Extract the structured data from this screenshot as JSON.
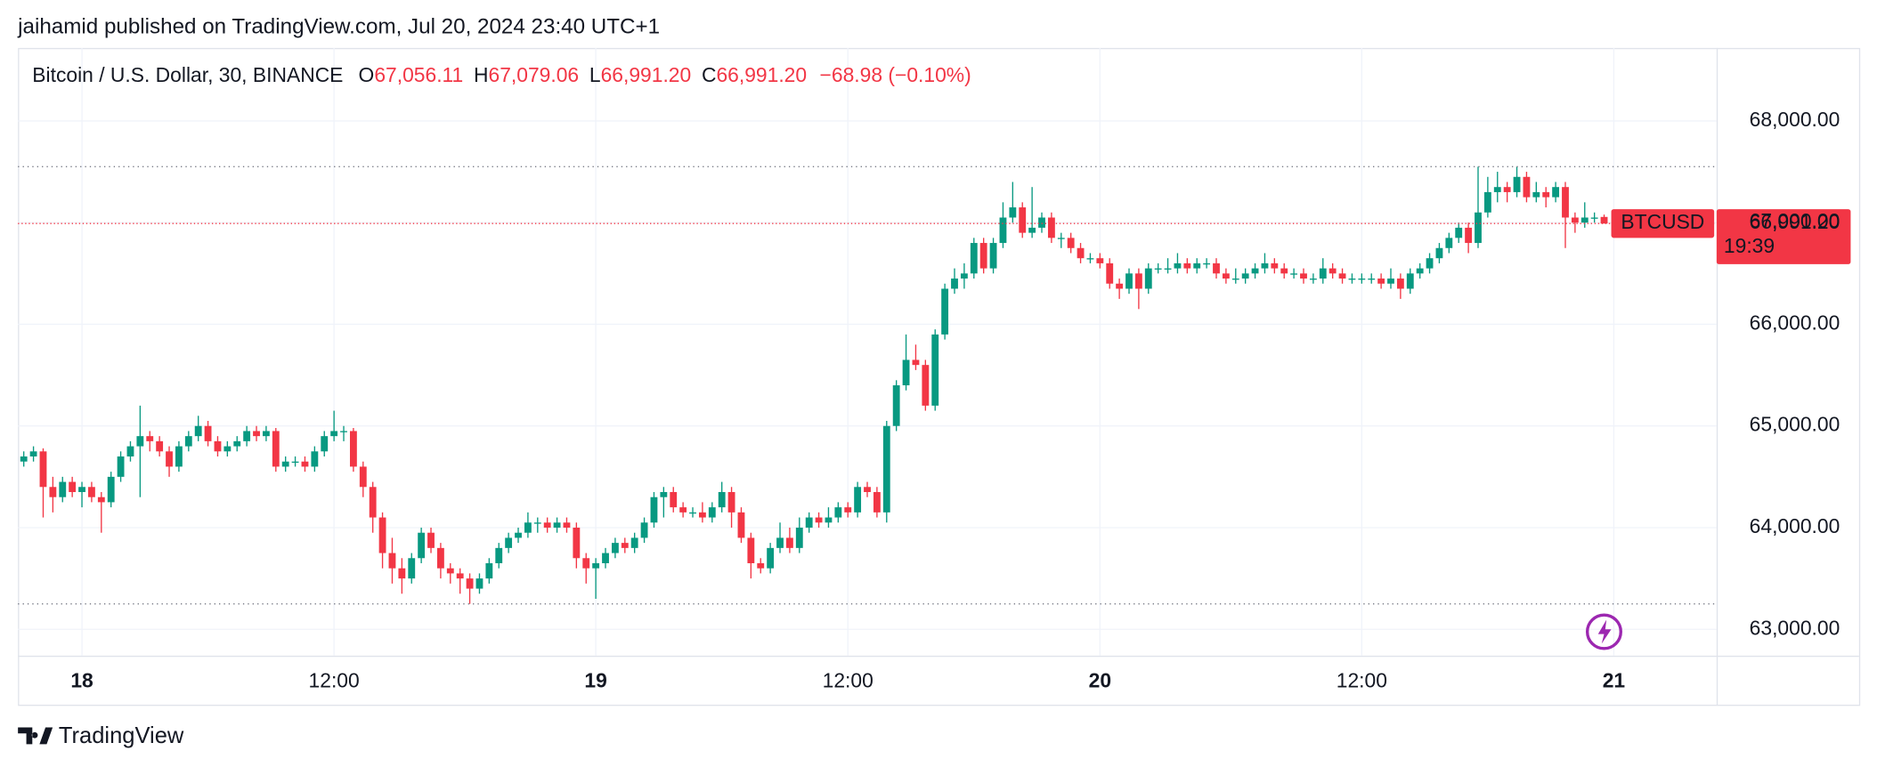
{
  "chart_data": {
    "type": "candlestick",
    "publisher_line": "jaihamid published on TradingView.com, Jul 20, 2024 23:40 UTC+1",
    "symbol_line": "Bitcoin / U.S. Dollar, 30, BINANCE",
    "ohlc_header": {
      "open_prefix": "O",
      "open": "67,056.11",
      "high_prefix": "H",
      "high": "67,079.06",
      "low_prefix": "L",
      "low": "66,991.20",
      "close_prefix": "C",
      "close": "66,991.20",
      "change": "−68.98 (−0.10%)"
    },
    "symbol_tag": "BTCUSD",
    "last_price_label": "66,991.20",
    "countdown": "19:39",
    "brand": "TradingView",
    "up_color": "#089981",
    "down_color": "#f23645",
    "grid": true,
    "xlim": [
      -0.6,
      174.6
    ],
    "xticks": [
      {
        "value": 6,
        "label": "18"
      },
      {
        "value": 32,
        "label": "12:00"
      },
      {
        "value": 59,
        "label": "19"
      },
      {
        "value": 85,
        "label": "12:00"
      },
      {
        "value": 111,
        "label": "20"
      },
      {
        "value": 138,
        "label": "12:00"
      },
      {
        "value": 164,
        "label": "21"
      }
    ],
    "ylim": [
      62741,
      68718
    ],
    "yticks": [
      {
        "value": 63000,
        "label": "63,000.00"
      },
      {
        "value": 64000,
        "label": "64,000.00"
      },
      {
        "value": 65000,
        "label": "65,000.00"
      },
      {
        "value": 66000,
        "label": "66,000.00"
      },
      {
        "value": 67000,
        "label": "67,000.00"
      },
      {
        "value": 68000,
        "label": "68,000.00"
      }
    ],
    "candles": [
      [
        64650,
        64750,
        64600,
        64700
      ],
      [
        64700,
        64800,
        64650,
        64750
      ],
      [
        64750,
        64780,
        64100,
        64400
      ],
      [
        64400,
        64500,
        64150,
        64300
      ],
      [
        64300,
        64500,
        64250,
        64450
      ],
      [
        64450,
        64500,
        64300,
        64350
      ],
      [
        64350,
        64450,
        64200,
        64400
      ],
      [
        64400,
        64450,
        64250,
        64300
      ],
      [
        64300,
        64350,
        63950,
        64250
      ],
      [
        64250,
        64550,
        64200,
        64500
      ],
      [
        64500,
        64750,
        64450,
        64700
      ],
      [
        64700,
        64850,
        64650,
        64800
      ],
      [
        64800,
        65200,
        64300,
        64900
      ],
      [
        64900,
        64950,
        64750,
        64850
      ],
      [
        64850,
        64900,
        64700,
        64750
      ],
      [
        64750,
        64800,
        64500,
        64600
      ],
      [
        64600,
        64850,
        64550,
        64800
      ],
      [
        64800,
        64950,
        64750,
        64900
      ],
      [
        64900,
        65100,
        64850,
        65000
      ],
      [
        65000,
        65050,
        64800,
        64850
      ],
      [
        64850,
        64900,
        64700,
        64750
      ],
      [
        64750,
        64850,
        64700,
        64800
      ],
      [
        64800,
        64900,
        64750,
        64850
      ],
      [
        64850,
        65000,
        64800,
        64950
      ],
      [
        64950,
        65000,
        64850,
        64900
      ],
      [
        64900,
        65000,
        64850,
        64950
      ],
      [
        64950,
        64980,
        64550,
        64600
      ],
      [
        64600,
        64700,
        64550,
        64650
      ],
      [
        64650,
        64700,
        64600,
        64650
      ],
      [
        64650,
        64700,
        64550,
        64600
      ],
      [
        64600,
        64800,
        64550,
        64750
      ],
      [
        64750,
        64950,
        64700,
        64900
      ],
      [
        64900,
        65150,
        64850,
        64950
      ],
      [
        64950,
        65000,
        64850,
        64950
      ],
      [
        64950,
        64980,
        64550,
        64600
      ],
      [
        64600,
        64650,
        64300,
        64400
      ],
      [
        64400,
        64450,
        63950,
        64100
      ],
      [
        64100,
        64150,
        63600,
        63750
      ],
      [
        63750,
        63900,
        63450,
        63600
      ],
      [
        63600,
        63700,
        63350,
        63500
      ],
      [
        63500,
        63750,
        63450,
        63700
      ],
      [
        63700,
        64000,
        63650,
        63950
      ],
      [
        63950,
        64000,
        63750,
        63800
      ],
      [
        63800,
        63850,
        63500,
        63600
      ],
      [
        63600,
        63650,
        63450,
        63550
      ],
      [
        63550,
        63600,
        63350,
        63500
      ],
      [
        63500,
        63550,
        63250,
        63400
      ],
      [
        63400,
        63550,
        63350,
        63500
      ],
      [
        63500,
        63700,
        63450,
        63650
      ],
      [
        63650,
        63850,
        63600,
        63800
      ],
      [
        63800,
        63950,
        63750,
        63900
      ],
      [
        63900,
        64000,
        63850,
        63950
      ],
      [
        63950,
        64150,
        63900,
        64050
      ],
      [
        64050,
        64100,
        63950,
        64050
      ],
      [
        64050,
        64100,
        63950,
        64000
      ],
      [
        64000,
        64100,
        63950,
        64050
      ],
      [
        64050,
        64100,
        63950,
        64000
      ],
      [
        64000,
        64050,
        63600,
        63700
      ],
      [
        63700,
        63750,
        63450,
        63600
      ],
      [
        63600,
        63700,
        63300,
        63650
      ],
      [
        63650,
        63800,
        63600,
        63750
      ],
      [
        63750,
        63900,
        63700,
        63850
      ],
      [
        63850,
        63900,
        63750,
        63800
      ],
      [
        63800,
        63950,
        63750,
        63900
      ],
      [
        63900,
        64100,
        63850,
        64050
      ],
      [
        64050,
        64350,
        64000,
        64300
      ],
      [
        64300,
        64400,
        64100,
        64350
      ],
      [
        64350,
        64400,
        64150,
        64200
      ],
      [
        64200,
        64250,
        64100,
        64150
      ],
      [
        64150,
        64200,
        64100,
        64150
      ],
      [
        64150,
        64250,
        64050,
        64100
      ],
      [
        64100,
        64250,
        64050,
        64200
      ],
      [
        64200,
        64450,
        64150,
        64350
      ],
      [
        64350,
        64400,
        64000,
        64150
      ],
      [
        64150,
        64200,
        63850,
        63900
      ],
      [
        63900,
        63950,
        63500,
        63650
      ],
      [
        63650,
        63700,
        63550,
        63600
      ],
      [
        63600,
        63850,
        63550,
        63800
      ],
      [
        63800,
        64050,
        63750,
        63900
      ],
      [
        63900,
        64000,
        63750,
        63800
      ],
      [
        63800,
        64100,
        63750,
        64000
      ],
      [
        64000,
        64150,
        63950,
        64100
      ],
      [
        64100,
        64150,
        64000,
        64050
      ],
      [
        64050,
        64200,
        64000,
        64100
      ],
      [
        64100,
        64250,
        64050,
        64200
      ],
      [
        64200,
        64250,
        64100,
        64150
      ],
      [
        64150,
        64450,
        64100,
        64400
      ],
      [
        64400,
        64450,
        64300,
        64350
      ],
      [
        64350,
        64400,
        64100,
        64150
      ],
      [
        64150,
        65050,
        64050,
        65000
      ],
      [
        65000,
        65450,
        64950,
        65400
      ],
      [
        65400,
        65900,
        65350,
        65650
      ],
      [
        65650,
        65800,
        65550,
        65600
      ],
      [
        65600,
        65650,
        65150,
        65200
      ],
      [
        65200,
        65950,
        65150,
        65900
      ],
      [
        65900,
        66400,
        65850,
        66350
      ],
      [
        66350,
        66550,
        66300,
        66450
      ],
      [
        66450,
        66600,
        66350,
        66500
      ],
      [
        66500,
        66850,
        66450,
        66800
      ],
      [
        66800,
        66850,
        66500,
        66550
      ],
      [
        66550,
        66850,
        66500,
        66800
      ],
      [
        66800,
        67200,
        66750,
        67050
      ],
      [
        67050,
        67400,
        67000,
        67150
      ],
      [
        67150,
        67200,
        66850,
        66900
      ],
      [
        66900,
        67350,
        66850,
        66950
      ],
      [
        66950,
        67100,
        66900,
        67050
      ],
      [
        67050,
        67100,
        66800,
        66850
      ],
      [
        66850,
        66900,
        66750,
        66850
      ],
      [
        66850,
        66900,
        66700,
        66750
      ],
      [
        66750,
        66800,
        66600,
        66650
      ],
      [
        66650,
        66700,
        66600,
        66650
      ],
      [
        66650,
        66700,
        66550,
        66600
      ],
      [
        66600,
        66650,
        66350,
        66400
      ],
      [
        66400,
        66450,
        66250,
        66350
      ],
      [
        66350,
        66550,
        66300,
        66500
      ],
      [
        66500,
        66550,
        66150,
        66350
      ],
      [
        66350,
        66600,
        66300,
        66550
      ],
      [
        66550,
        66600,
        66500,
        66550
      ],
      [
        66550,
        66650,
        66500,
        66550
      ],
      [
        66550,
        66700,
        66500,
        66600
      ],
      [
        66600,
        66650,
        66500,
        66550
      ],
      [
        66550,
        66650,
        66500,
        66600
      ],
      [
        66600,
        66650,
        66550,
        66600
      ],
      [
        66600,
        66650,
        66450,
        66500
      ],
      [
        66500,
        66550,
        66400,
        66450
      ],
      [
        66450,
        66550,
        66400,
        66450
      ],
      [
        66450,
        66550,
        66400,
        66500
      ],
      [
        66500,
        66600,
        66450,
        66550
      ],
      [
        66550,
        66700,
        66500,
        66600
      ],
      [
        66600,
        66650,
        66500,
        66550
      ],
      [
        66550,
        66600,
        66450,
        66500
      ],
      [
        66500,
        66550,
        66450,
        66500
      ],
      [
        66500,
        66550,
        66400,
        66450
      ],
      [
        66450,
        66500,
        66400,
        66450
      ],
      [
        66450,
        66650,
        66400,
        66550
      ],
      [
        66550,
        66600,
        66450,
        66500
      ],
      [
        66500,
        66550,
        66400,
        66450
      ],
      [
        66450,
        66500,
        66400,
        66450
      ],
      [
        66450,
        66500,
        66400,
        66450
      ],
      [
        66450,
        66500,
        66400,
        66450
      ],
      [
        66450,
        66500,
        66350,
        66400
      ],
      [
        66400,
        66550,
        66350,
        66450
      ],
      [
        66450,
        66500,
        66250,
        66350
      ],
      [
        66350,
        66550,
        66300,
        66500
      ],
      [
        66500,
        66600,
        66450,
        66550
      ],
      [
        66550,
        66700,
        66500,
        66650
      ],
      [
        66650,
        66800,
        66600,
        66750
      ],
      [
        66750,
        66900,
        66700,
        66850
      ],
      [
        66850,
        67000,
        66800,
        66950
      ],
      [
        66950,
        67000,
        66700,
        66800
      ],
      [
        66800,
        67550,
        66750,
        67100
      ],
      [
        67100,
        67450,
        67050,
        67300
      ],
      [
        67300,
        67500,
        67200,
        67350
      ],
      [
        67350,
        67400,
        67200,
        67300
      ],
      [
        67300,
        67550,
        67250,
        67450
      ],
      [
        67450,
        67500,
        67200,
        67250
      ],
      [
        67250,
        67400,
        67200,
        67300
      ],
      [
        67300,
        67350,
        67150,
        67250
      ],
      [
        67250,
        67400,
        67200,
        67350
      ],
      [
        67350,
        67400,
        66750,
        67050
      ],
      [
        67050,
        67100,
        66900,
        67000
      ],
      [
        67000,
        67200,
        66950,
        67050
      ],
      [
        67050,
        67100,
        67000,
        67050
      ],
      [
        67056.11,
        67079.06,
        66991.2,
        66991.2
      ]
    ]
  }
}
